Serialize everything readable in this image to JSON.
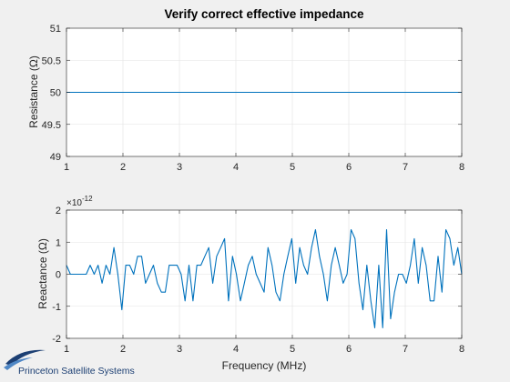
{
  "figure": {
    "background": "#f0f0f0",
    "axes_background": "#ffffff",
    "line_color": "#0072bd",
    "grid_color": "#e3e3e3",
    "axis_color": "#262626",
    "logo_text": "Princeton Satellite Systems",
    "logo_color": "#1c3f73"
  },
  "chart_data": [
    {
      "type": "line",
      "title": "Verify correct effective impedance",
      "xlabel": "",
      "ylabel": "Resistance (Ω)",
      "xlim": [
        1,
        8
      ],
      "ylim": [
        49,
        51
      ],
      "xticks": [
        "1",
        "2",
        "3",
        "4",
        "5",
        "6",
        "7",
        "8"
      ],
      "yticks": [
        "49",
        "49.5",
        "50",
        "50.5",
        "51"
      ],
      "grid": true,
      "series": [
        {
          "x": [
            1,
            8
          ],
          "y": [
            50,
            50
          ]
        }
      ]
    },
    {
      "type": "line",
      "title": "",
      "xlabel": "Frequency (MHz)",
      "ylabel": "Reactance (Ω)",
      "exponent_label": "×10",
      "exponent_power": "-12",
      "xlim": [
        1,
        8
      ],
      "ylim": [
        -2,
        2
      ],
      "xticks": [
        "1",
        "2",
        "3",
        "4",
        "5",
        "6",
        "7",
        "8"
      ],
      "yticks": [
        "-2",
        "-1",
        "0",
        "1",
        "2"
      ],
      "grid": true,
      "series": [
        {
          "x": [
            1.0,
            1.07,
            1.14,
            1.21,
            1.28,
            1.35,
            1.42,
            1.49,
            1.56,
            1.63,
            1.7,
            1.77,
            1.84,
            1.91,
            1.98,
            2.05,
            2.12,
            2.19,
            2.26,
            2.33,
            2.4,
            2.47,
            2.54,
            2.61,
            2.68,
            2.75,
            2.82,
            2.89,
            2.96,
            3.03,
            3.1,
            3.17,
            3.24,
            3.31,
            3.38,
            3.45,
            3.52,
            3.59,
            3.66,
            3.73,
            3.8,
            3.87,
            3.94,
            4.01,
            4.08,
            4.15,
            4.22,
            4.29,
            4.36,
            4.43,
            4.5,
            4.57,
            4.64,
            4.71,
            4.78,
            4.85,
            4.92,
            4.99,
            5.06,
            5.13,
            5.2,
            5.27,
            5.34,
            5.41,
            5.48,
            5.55,
            5.62,
            5.69,
            5.76,
            5.83,
            5.9,
            5.97,
            6.04,
            6.11,
            6.18,
            6.25,
            6.32,
            6.39,
            6.46,
            6.53,
            6.6,
            6.67,
            6.74,
            6.81,
            6.88,
            6.95,
            7.02,
            7.09,
            7.16,
            7.23,
            7.3,
            7.37,
            7.44,
            7.51,
            7.58,
            7.65,
            7.72,
            7.79,
            7.86,
            7.93,
            8.0
          ],
          "y": [
            0.28,
            0.0,
            0.0,
            0.0,
            0.0,
            0.0,
            0.28,
            0.0,
            0.28,
            -0.28,
            0.28,
            0.0,
            0.83,
            0.0,
            -1.11,
            0.28,
            0.28,
            0.0,
            0.56,
            0.56,
            -0.28,
            0.0,
            0.28,
            -0.28,
            -0.56,
            -0.56,
            0.28,
            0.28,
            0.28,
            0.0,
            -0.83,
            0.28,
            -0.83,
            0.28,
            0.28,
            0.56,
            0.83,
            -0.28,
            0.56,
            0.83,
            1.11,
            -0.83,
            0.56,
            0.0,
            -0.83,
            -0.28,
            0.28,
            0.56,
            0.0,
            -0.28,
            -0.56,
            0.83,
            0.28,
            -0.56,
            -0.83,
            0.0,
            0.56,
            1.11,
            -0.28,
            0.83,
            0.28,
            0.0,
            0.83,
            1.39,
            0.56,
            0.0,
            -0.83,
            0.28,
            0.83,
            0.28,
            -0.28,
            0.0,
            1.39,
            1.11,
            -0.28,
            -1.11,
            0.28,
            -0.83,
            -1.67,
            0.28,
            -1.67,
            1.39,
            -1.39,
            -0.56,
            0.0,
            0.0,
            -0.28,
            0.28,
            1.11,
            -0.28,
            0.83,
            0.28,
            -0.83,
            -0.83,
            0.56,
            -0.56,
            1.39,
            1.11,
            0.28,
            0.83,
            0.0
          ]
        }
      ]
    }
  ]
}
